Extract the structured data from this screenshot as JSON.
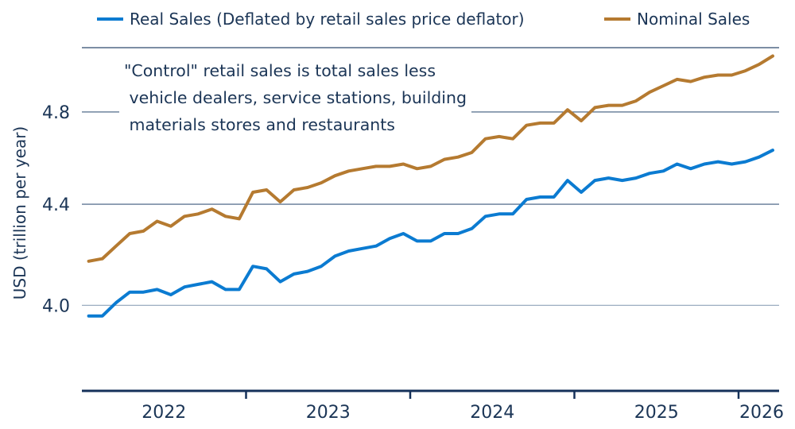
{
  "chart_data": {
    "type": "line",
    "title": "",
    "xlabel": "",
    "ylabel": "USD (trillion per year)",
    "yscale": "log",
    "ylim": [
      3.69,
      5.1
    ],
    "yticks": [
      "4.0",
      "4.4",
      "4.8"
    ],
    "ytick_values": [
      4.0,
      4.4,
      4.8
    ],
    "xticks": [
      "2022",
      "2023",
      "2024",
      "2025",
      "2026"
    ],
    "grid": true,
    "legend_placement": "top",
    "annotation": "\"Control\" retail sales is total sales less\n vehicle dealers, service stations, building\n materials stores and restaurants",
    "x": [
      "2022-01",
      "2022-02",
      "2022-03",
      "2022-04",
      "2022-05",
      "2022-06",
      "2022-07",
      "2022-08",
      "2022-09",
      "2022-10",
      "2022-11",
      "2022-12",
      "2023-01",
      "2023-02",
      "2023-03",
      "2023-04",
      "2023-05",
      "2023-06",
      "2023-07",
      "2023-08",
      "2023-09",
      "2023-10",
      "2023-11",
      "2023-12",
      "2024-01",
      "2024-02",
      "2024-03",
      "2024-04",
      "2024-05",
      "2024-06",
      "2024-07",
      "2024-08",
      "2024-09",
      "2024-10",
      "2024-11",
      "2024-12",
      "2025-01",
      "2025-02",
      "2025-03",
      "2025-04",
      "2025-05",
      "2025-06",
      "2025-07",
      "2025-08",
      "2025-09",
      "2025-10",
      "2025-11",
      "2025-12",
      "2026-01",
      "2026-02",
      "2026-03"
    ],
    "series": [
      {
        "name": "Real Sales (Deflated by retail sales price deflator)",
        "color": "#0b7bd1",
        "values": [
          3.96,
          3.96,
          4.01,
          4.05,
          4.05,
          4.06,
          4.04,
          4.07,
          4.08,
          4.09,
          4.06,
          4.06,
          4.15,
          4.14,
          4.09,
          4.12,
          4.13,
          4.15,
          4.19,
          4.21,
          4.22,
          4.23,
          4.26,
          4.28,
          4.25,
          4.25,
          4.28,
          4.28,
          4.3,
          4.35,
          4.36,
          4.36,
          4.42,
          4.43,
          4.43,
          4.5,
          4.45,
          4.5,
          4.51,
          4.5,
          4.51,
          4.53,
          4.54,
          4.57,
          4.55,
          4.57,
          4.58,
          4.57,
          4.58,
          4.6,
          4.63
        ]
      },
      {
        "name": "Nominal Sales",
        "color": "#b57a30",
        "values": [
          4.17,
          4.18,
          4.23,
          4.28,
          4.29,
          4.33,
          4.31,
          4.35,
          4.36,
          4.38,
          4.35,
          4.34,
          4.45,
          4.46,
          4.41,
          4.46,
          4.47,
          4.49,
          4.52,
          4.54,
          4.55,
          4.56,
          4.56,
          4.57,
          4.55,
          4.56,
          4.59,
          4.6,
          4.62,
          4.68,
          4.69,
          4.68,
          4.74,
          4.75,
          4.75,
          4.81,
          4.76,
          4.82,
          4.83,
          4.83,
          4.85,
          4.89,
          4.92,
          4.95,
          4.94,
          4.96,
          4.97,
          4.97,
          4.99,
          5.02,
          5.06
        ]
      }
    ]
  }
}
